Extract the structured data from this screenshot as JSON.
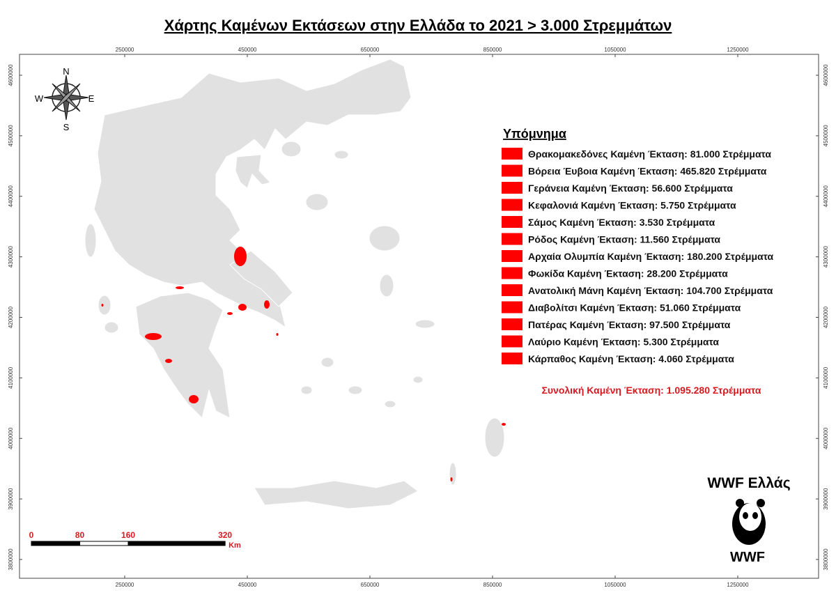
{
  "title": "Χάρτης Καμένων Εκτάσεων στην Ελλάδα το 2021 > 3.000 Στρεμμάτων",
  "map": {
    "xticks": [
      250000,
      450000,
      650000,
      850000,
      1050000,
      1250000
    ],
    "yticks": [
      3800000,
      3900000,
      4000000,
      4100000,
      4200000,
      4300000,
      4400000,
      4500000,
      4600000
    ]
  },
  "compass": {
    "north": "N",
    "south": "S",
    "east": "E",
    "west": "W"
  },
  "scale_bar": {
    "ticks": [
      0,
      80,
      160,
      320
    ],
    "unit": "Km"
  },
  "legend": {
    "title": "Υπόμνημα",
    "items": [
      "Θρακομακεδόνες Καμένη Έκταση: 81.000 Στρέμματα",
      "Βόρεια Έυβοια Καμένη Έκταση: 465.820 Στρέμματα",
      "Γεράνεια Καμένη Έκταση: 56.600 Στρέμματα",
      "Κεφαλονιά Καμένη Έκταση: 5.750 Στρέμματα",
      "Σάμος Καμένη Έκταση: 3.530 Στρέμματα",
      "Ρόδος Καμένη Έκταση: 11.560 Στρέμματα",
      "Αρχαία Ολυμπία Καμένη Έκταση: 180.200 Στρέμματα",
      "Φωκίδα Καμένη Έκταση: 28.200 Στρέμματα",
      "Ανατολική Μάνη Καμένη Έκταση: 104.700 Στρέμματα",
      "Διαβολίτσι Καμένη Έκταση: 51.060 Στρέμματα",
      "Πατέρας Καμένη Έκταση: 97.500 Στρέμματα",
      "Λαύριο Καμένη Έκταση: 5.300 Στρέμματα",
      "Κάρπαθος Καμένη Έκταση: 4.060 Στρέμματα"
    ]
  },
  "total": "Συνολική Καμένη Έκταση: 1.095.280 Στρέμματα",
  "brand": "WWF Ελλάς",
  "logo": "WWF"
}
